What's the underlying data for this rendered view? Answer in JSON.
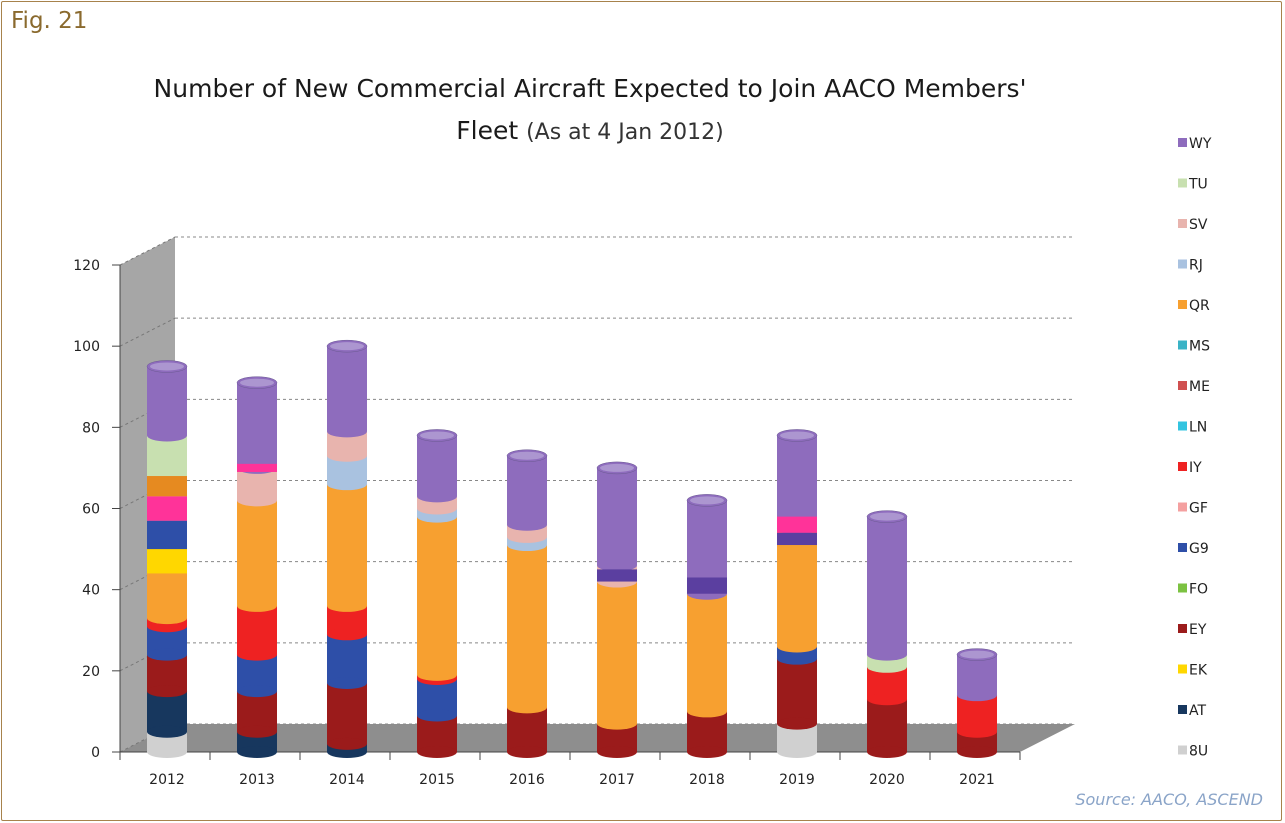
{
  "figure": {
    "label": "Fig. 21",
    "source": "Source: AACO, ASCEND"
  },
  "chart_data": {
    "type": "bar",
    "stacked": true,
    "title_line1": "Number of New Commercial Aircraft Expected to Join AACO Members'",
    "title_line2_main": "Fleet",
    "title_line2_paren": "(As at 4 Jan 2012)",
    "categories": [
      "2012",
      "2013",
      "2014",
      "2015",
      "2016",
      "2017",
      "2018",
      "2019",
      "2020",
      "2021"
    ],
    "yticks": [
      0,
      20,
      40,
      60,
      80,
      100,
      120
    ],
    "ylim": [
      0,
      120
    ],
    "grid": true,
    "legend_position": "right",
    "series": [
      {
        "name": "8U",
        "color": "#d0d0d0",
        "values": [
          5,
          0,
          0,
          0,
          0,
          0,
          0,
          7,
          0,
          0
        ]
      },
      {
        "name": "AT",
        "color": "#17375e",
        "values": [
          10,
          5,
          2,
          0,
          0,
          0,
          0,
          0,
          0,
          0
        ]
      },
      {
        "name": "EK",
        "color": "#ffd700",
        "values": [
          0,
          0,
          0,
          0,
          0,
          0,
          0,
          0,
          0,
          0
        ]
      },
      {
        "name": "EY",
        "color": "#9b1b1b",
        "values": [
          9,
          10,
          15,
          9,
          11,
          7,
          10,
          16,
          13,
          5
        ]
      },
      {
        "name": "FO",
        "color": "#7cc242",
        "values": [
          0,
          0,
          0,
          0,
          0,
          0,
          0,
          0,
          0,
          0
        ]
      },
      {
        "name": "G9",
        "color": "#2e4fa8",
        "values": [
          7,
          9,
          12,
          9,
          0,
          0,
          0,
          3,
          0,
          0
        ]
      },
      {
        "name": "GF",
        "color": "#f4a0a0",
        "values": [
          0,
          0,
          0,
          0,
          0,
          0,
          0,
          0,
          0,
          0
        ]
      },
      {
        "name": "IY",
        "color": "#ee2222",
        "values": [
          2,
          12,
          7,
          1,
          0,
          0,
          0,
          0,
          8,
          9
        ]
      },
      {
        "name": "LN",
        "color": "#33c4e0",
        "values": [
          0,
          0,
          0,
          0,
          0,
          0,
          0,
          0,
          0,
          0
        ]
      },
      {
        "name": "ME",
        "color": "#d05050",
        "values": [
          0,
          0,
          0,
          0,
          0,
          0,
          0,
          0,
          0,
          0
        ]
      },
      {
        "name": "MS",
        "color": "#3ab3c6",
        "values": [
          0,
          0,
          0,
          0,
          0,
          0,
          0,
          0,
          0,
          0
        ]
      },
      {
        "name": "QR",
        "color": "#f7a030",
        "values": [
          19,
          26,
          30,
          39,
          40,
          35,
          29,
          29,
          0,
          0
        ]
      },
      {
        "name": "RJ",
        "color": "#a9c2e0",
        "values": [
          5,
          0,
          7,
          2,
          2,
          0,
          0,
          0,
          0,
          0
        ]
      },
      {
        "name": "SV",
        "color": "#e8b4ae",
        "values": [
          11,
          8,
          6,
          3,
          3,
          4,
          0,
          0,
          0,
          0
        ]
      },
      {
        "name": "TU",
        "color": "#c8e0b0",
        "values": [
          10,
          0,
          0,
          0,
          0,
          0,
          0,
          0,
          3,
          0
        ]
      },
      {
        "name": "WY",
        "color": "#8e6cbd",
        "values": [
          17,
          21,
          21,
          15,
          17,
          24,
          23,
          23,
          34,
          10
        ]
      }
    ],
    "extra_segments": [
      {
        "category": "2012",
        "series": "EK",
        "base": 44,
        "value": 6,
        "color": "#ffd700"
      },
      {
        "category": "2012",
        "series": "G9",
        "base": 50,
        "value": 7,
        "color": "#2e4fa8"
      },
      {
        "category": "2012",
        "series": "pink",
        "base": 57,
        "value": 6,
        "color": "#ff3399"
      },
      {
        "category": "2012",
        "series": "QR-top",
        "base": 63,
        "value": 5,
        "color": "#e68a20"
      },
      {
        "category": "2013",
        "series": "pink",
        "base": 69,
        "value": 2,
        "color": "#ff3399"
      },
      {
        "category": "2017",
        "series": "G9",
        "base": 42,
        "value": 3,
        "color": "#5b3fa0"
      },
      {
        "category": "2018",
        "series": "G9",
        "base": 39,
        "value": 4,
        "color": "#5b3fa0"
      },
      {
        "category": "2019",
        "series": "pink",
        "base": 54,
        "value": 4,
        "color": "#ff3399"
      },
      {
        "category": "2019",
        "series": "G9",
        "base": 51,
        "value": 3,
        "color": "#5b3fa0"
      }
    ]
  }
}
